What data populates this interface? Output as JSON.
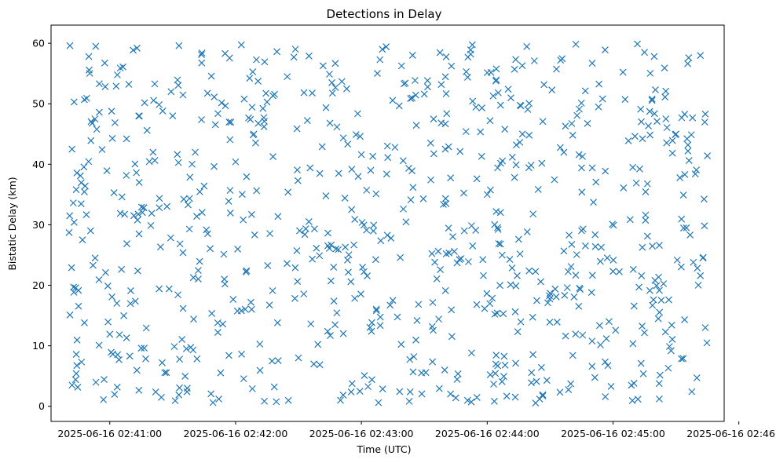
{
  "chart_data": {
    "type": "scatter",
    "title": "Detections in Delay",
    "xlabel": "Time (UTC)",
    "ylabel": "Bistatic Delay (km)",
    "xlim": [
      "2025-06-16 02:40:32",
      "2025-06-16 02:45:53"
    ],
    "ylim": [
      -2.5,
      63
    ],
    "x_ticks": [
      "2025-06-16 02:41:00",
      "2025-06-16 02:42:00",
      "2025-06-16 02:43:00",
      "2025-06-16 02:44:00",
      "2025-06-16 02:45:00",
      "2025-06-16 02:46:00"
    ],
    "y_ticks": [
      0,
      10,
      20,
      30,
      40,
      50,
      60
    ],
    "grid": false,
    "legend": "none",
    "marker": "x",
    "color": "#1f77b4",
    "start": "2025-06-16 02:40:40",
    "end": "2025-06-16 02:45:45",
    "point_count": 800,
    "series": [
      {
        "points": [
          [
            "2025-06-16 02:40:41",
            59.6
          ],
          [
            "2025-06-16 02:40:42",
            42.5
          ],
          [
            "2025-06-16 02:40:43",
            50.3
          ],
          [
            "2025-06-16 02:40:44",
            35.8
          ],
          [
            "2025-06-16 02:40:43",
            30.4
          ],
          [
            "2025-06-16 02:40:41",
            15.1
          ],
          [
            "2025-06-16 02:40:42",
            3.5
          ],
          [
            "2025-06-16 02:40:44",
            5.4
          ],
          [
            "2025-06-16 02:40:46",
            38.1
          ],
          [
            "2025-06-16 02:40:47",
            27.5
          ],
          [
            "2025-06-16 02:40:50",
            57.8
          ],
          [
            "2025-06-16 02:40:52",
            23.3
          ],
          [
            "2025-06-16 02:40:55",
            53.3
          ],
          [
            "2025-06-16 02:40:55",
            48.6
          ],
          [
            "2025-06-16 02:40:58",
            22.1
          ],
          [
            "2025-06-16 02:40:57",
            1.1
          ],
          [
            "2025-06-16 02:41:00",
            11.9
          ],
          [
            "2025-06-16 02:41:02",
            35.3
          ],
          [
            "2025-06-16 02:41:05",
            55.9
          ],
          [
            "2025-06-16 02:41:08",
            44.2
          ],
          [
            "2025-06-16 02:41:10",
            19.1
          ],
          [
            "2025-06-16 02:41:13",
            59.2
          ],
          [
            "2025-06-16 02:41:15",
            9.6
          ],
          [
            "2025-06-16 02:41:20",
            31.9
          ],
          [
            "2025-06-16 02:41:25",
            7.2
          ],
          [
            "2025-06-16 02:41:30",
            48.0
          ],
          [
            "2025-06-16 02:41:33",
            59.6
          ],
          [
            "2025-06-16 02:41:40",
            14.4
          ],
          [
            "2025-06-16 02:41:45",
            36.4
          ],
          [
            "2025-06-16 02:41:52",
            1.2
          ],
          [
            "2025-06-16 02:41:55",
            58.3
          ],
          [
            "2025-06-16 02:42:00",
            40.4
          ],
          [
            "2025-06-16 02:42:05",
            22.2
          ],
          [
            "2025-06-16 02:42:08",
            2.9
          ],
          [
            "2025-06-16 02:42:15",
            50.3
          ],
          [
            "2025-06-16 02:42:20",
            13.8
          ],
          [
            "2025-06-16 02:42:25",
            35.4
          ],
          [
            "2025-06-16 02:42:30",
            8.0
          ],
          [
            "2025-06-16 02:42:35",
            57.9
          ],
          [
            "2025-06-16 02:42:40",
            24.9
          ],
          [
            "2025-06-16 02:42:45",
            46.8
          ],
          [
            "2025-06-16 02:42:50",
            1.0
          ],
          [
            "2025-06-16 02:42:55",
            20.6
          ],
          [
            "2025-06-16 02:43:00",
            41.6
          ],
          [
            "2025-06-16 02:43:05",
            4.4
          ],
          [
            "2025-06-16 02:43:10",
            59.0
          ],
          [
            "2025-06-16 02:43:15",
            17.5
          ],
          [
            "2025-06-16 02:43:20",
            32.6
          ],
          [
            "2025-06-16 02:43:25",
            8.2
          ],
          [
            "2025-06-16 02:43:30",
            51.6
          ],
          [
            "2025-06-16 02:43:35",
            23.8
          ],
          [
            "2025-06-16 02:43:40",
            42.5
          ],
          [
            "2025-06-16 02:43:45",
            1.4
          ],
          [
            "2025-06-16 02:43:50",
            55.3
          ],
          [
            "2025-06-16 02:43:55",
            16.8
          ],
          [
            "2025-06-16 02:44:00",
            35.0
          ],
          [
            "2025-06-16 02:44:05",
            6.7
          ],
          [
            "2025-06-16 02:44:10",
            52.4
          ],
          [
            "2025-06-16 02:44:15",
            27.6
          ],
          [
            "2025-06-16 02:44:20",
            44.8
          ],
          [
            "2025-06-16 02:44:25",
            1.2
          ],
          [
            "2025-06-16 02:44:30",
            18.7
          ],
          [
            "2025-06-16 02:44:35",
            57.2
          ],
          [
            "2025-06-16 02:44:40",
            23.1
          ],
          [
            "2025-06-16 02:44:45",
            39.4
          ],
          [
            "2025-06-16 02:44:50",
            6.6
          ],
          [
            "2025-06-16 02:44:55",
            50.8
          ],
          [
            "2025-06-16 02:45:00",
            22.3
          ],
          [
            "2025-06-16 02:45:05",
            36.1
          ],
          [
            "2025-06-16 02:45:10",
            3.8
          ],
          [
            "2025-06-16 02:45:15",
            58.5
          ],
          [
            "2025-06-16 02:45:20",
            20.8
          ],
          [
            "2025-06-16 02:45:25",
            12.3
          ],
          [
            "2025-06-16 02:45:30",
            45.0
          ],
          [
            "2025-06-16 02:45:35",
            29.5
          ],
          [
            "2025-06-16 02:45:40",
            4.7
          ],
          [
            "2025-06-16 02:45:43",
            24.6
          ],
          [
            "2025-06-16 02:45:44",
            48.3
          ],
          [
            "2025-06-16 02:45:45",
            41.4
          ],
          [
            "2025-06-16 02:45:44",
            13.0
          ]
        ]
      }
    ]
  }
}
